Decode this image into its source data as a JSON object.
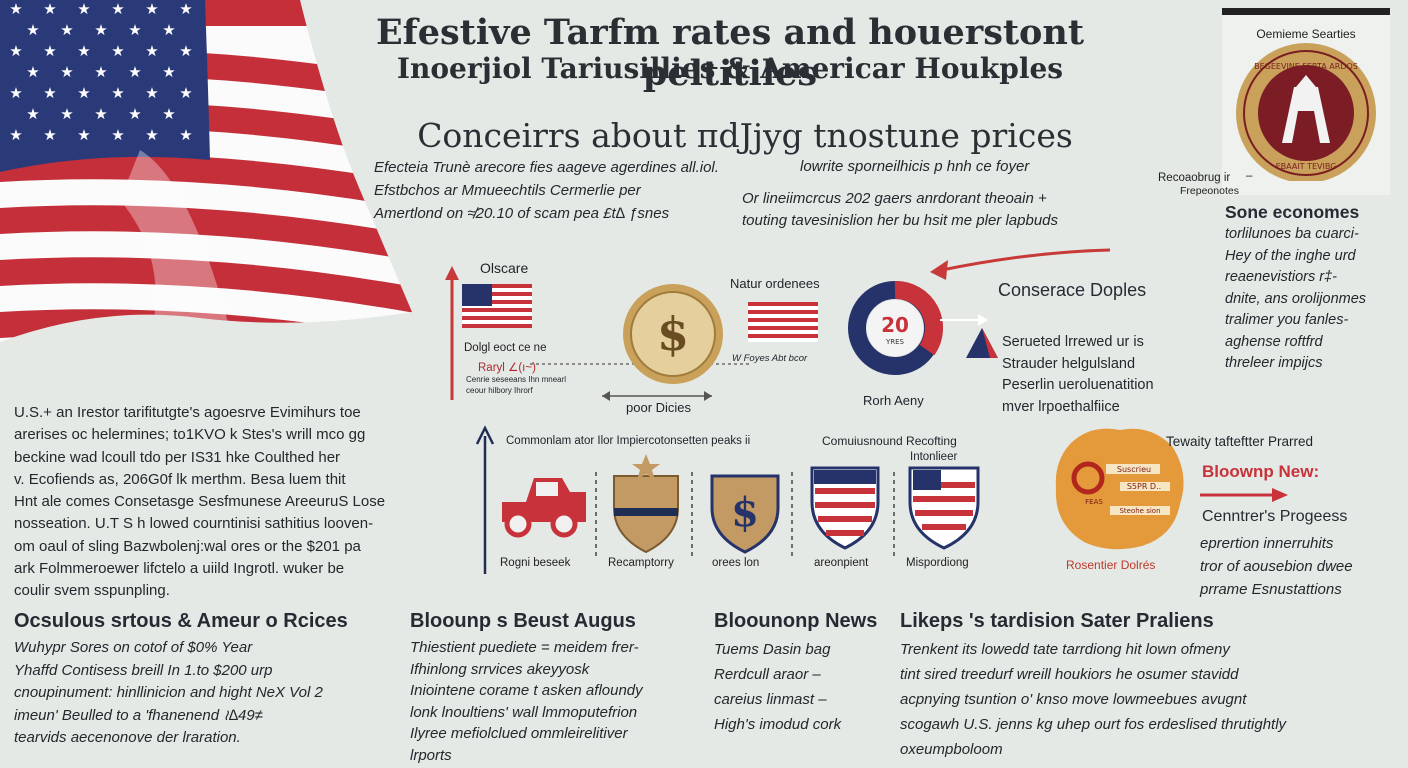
{
  "colors": {
    "background": "#e4e9e6",
    "flag_red": "#c8323a",
    "flag_blue": "#26336a",
    "arrow_red": "#c83a3a",
    "navy": "#1f2d55",
    "gold": "#c9a15a"
  },
  "header": {
    "title": "Efestive Tarfm rates and houerstont peltitiles",
    "subtitle": "Inoerjiol Tariusillies &  Americar Houkples",
    "heading2": "Conceirrs about  πdJjyg tnostune prices"
  },
  "intro": {
    "left_lines": [
      "Efecteia Trunè arecore fies aageve agerdines all.iol.",
      "Efstbchos ar Mmueechtils Cermerlie per",
      "Amertlond on ≉20.10 of scam pea £t∆ ƒsnes"
    ],
    "right_top": "lowrite sporneilhicis p hnh  ce  foyer",
    "right_lines": [
      "Or lineiimcrcus 202 gaers anrdorant theoain +",
      "touting tavesinislion her bu hsit me pler lapbuds"
    ]
  },
  "badge": {
    "header": "Oemieme Searties",
    "caption_1": "Recoaobrug ir",
    "caption_2": "Frepeonotes",
    "dash": "–",
    "seal_top": "BEGEEVINE FERTA ARDOS",
    "seal_bottom": "EBAAIT TEVIBG"
  },
  "right_col": {
    "heading": "Sone economes",
    "lines": [
      "torlilunoes ba cuarci-",
      "Hey of the inghe urd",
      "reaenevistiors r‡-",
      "dnite, ans orolijonmes",
      "tralimer you fanles-",
      "aghense roftfrd",
      "threleer impijcs"
    ]
  },
  "diagram": {
    "label_obscare": "Olscare",
    "rate_1": "Dolgl  eoct  ce  ne",
    "rate_2": "Raryl  ∠(ı~)",
    "note_1": "Cenrie  seseeans  Ihn  mnearl",
    "note_2": "ceour  hilbory  Ihrorf",
    "poor_label": "poor Dicies",
    "mid_label": "Natur ordenees",
    "mid_caption": "W  Foyes   Abt  bcor",
    "donut_value": "20",
    "donut_sub": "YRES",
    "donut_caption": "Rorh Aeny",
    "conserve_heading": "Conserace Doples",
    "conserve_lines": [
      "Serueted lrrewed ur is",
      "Strauder helgulsland",
      "Peserlin ueroluenatition",
      "mver lrpoethalfiice"
    ]
  },
  "icons_row": {
    "heading_left": "Commonlam ator  Ilor  Impiercotonsetten  peaks ii",
    "heading_right_1": "Comuiusnound Recofting",
    "heading_right_2": "Intonlieer",
    "labels": [
      "Rogni beseek",
      "Recamptorry",
      "orees lon",
      "areonpient",
      "Mispordiong"
    ]
  },
  "right_block": {
    "heading_1": "Tewaity tafteftter Prarred",
    "red_heading": "Bloownp New:",
    "heading_2": "Cenntrer's Progeess",
    "lines": [
      "eprertion innerruhits",
      "tror of aousebion dwee",
      "prrame Esnustattions"
    ],
    "stamp_label": "Rosentier Dolrés",
    "stamp_text_1": "Suscrieu",
    "stamp_text_2": "S5PR  D..",
    "stamp_text_3": "FEAS",
    "stamp_text_4": "Steohe sion"
  },
  "left_para": {
    "lines": [
      "U.S.+ an  Irestor  tarifitutgte's  agoesrve  Evimihurs  toe",
      "arerises  oc helermines;  to1KVO  k  Stes's  wrill  mco  gg",
      "beckine   wad  lcoull  tdo  per  IS31  hke  Coulthed  her",
      "v. Ecofiends  as,  206G0f  lk  merthm.   Besa  luem  thit",
      "Hnt ale comes  Consetasge  Sesfmunese  AreeuruS  Lose",
      "nosseation.  U.T S h  lowed  courntinisi  sathitius  looven-",
      "om  oaul  of  sling  Bazwbolenj:wal  ores  or  the  $201  pa",
      "ark  Folmmeroewer  lifctelo  a  uiild  Ingrotl.  wuker  be",
      "coulir  svem  sspunpling."
    ]
  },
  "bottom": [
    {
      "heading": "Ocsulous srtous & Ameur o Rcices",
      "lines": [
        "Wuhypr   Sores   on   cotof of  $0%  Year",
        "Yhaffd  Contisess  breill  In  1.to  $200  urp",
        "cnoupinument:  hinllinicion   and  hight  NeX  Vol 2",
        "imeun'   Beulled   to a  'fhanenend  ≀∆49≠",
        "tearvids  aecenonove  der  lraration."
      ]
    },
    {
      "heading": "Bloounp s Beust Augus",
      "lines": [
        "Thiestient  puediete  =  meidem  frer-",
        "Ifhinlong  srrvices  akeyyosk",
        "Iniointene  corame  t asken  afloundy",
        "lonk  lnoultiens'  wall  lmmoputefrion",
        "Ilyree  mefiolclued  ommleirelitiver",
        "lrports"
      ]
    },
    {
      "heading": "Bloounonp News",
      "lines": [
        "Tuems   Dasin  bag",
        "Rerdcull  araor   –",
        "careius  linmast   –",
        "High's  imodud  cork"
      ]
    },
    {
      "heading": "Likeps 's tardision  Sater Praliens",
      "lines": [
        "Trenkent   its   lowedd   tate   tarrdiong   hit  lown   ofmeny",
        "tint   sired   treedurf   wreill   houkiors   he   osumer  stavidd",
        "acpnying   tsuntion   o'   knso   move   lowmeebues   avugnt",
        "scogawh  U.S. jenns  kg  uhep  ourt  fos  erdeslised  thrutightly",
        "oxeumpboloom"
      ]
    }
  ]
}
